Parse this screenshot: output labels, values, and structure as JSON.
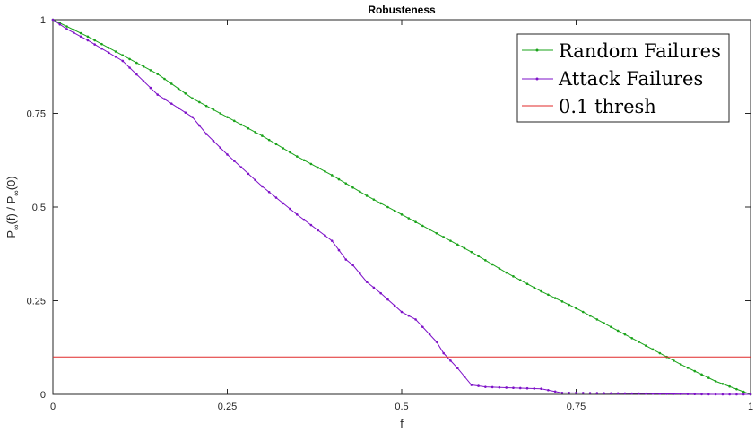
{
  "chart_data": {
    "type": "line",
    "title": "Robusteness",
    "xlabel": "f",
    "ylabel": {
      "main_a": "P",
      "sub_a": "∞",
      "mid": "(f) / P",
      "sub_b": "∞",
      "tail": "(0)"
    },
    "xlim": [
      0,
      1
    ],
    "ylim": [
      0,
      1
    ],
    "xticks": [
      0,
      0.25,
      0.5,
      0.75,
      1
    ],
    "xtick_labels": [
      "0",
      "0.25",
      "0.5",
      "0.75",
      "1"
    ],
    "yticks": [
      0,
      0.25,
      0.5,
      0.75,
      1
    ],
    "ytick_labels": [
      "0",
      "0.25",
      "0.5",
      "0.75",
      "1"
    ],
    "grid": false,
    "legend_position": "top-right",
    "series": [
      {
        "name": "Random Failures",
        "color": "#1aa31a",
        "marker": "dot",
        "x": [
          0,
          0.05,
          0.1,
          0.15,
          0.2,
          0.25,
          0.3,
          0.35,
          0.4,
          0.45,
          0.5,
          0.55,
          0.6,
          0.65,
          0.7,
          0.75,
          0.8,
          0.85,
          0.9,
          0.95,
          1.0
        ],
        "y": [
          1.0,
          0.955,
          0.905,
          0.855,
          0.79,
          0.74,
          0.69,
          0.635,
          0.585,
          0.53,
          0.48,
          0.43,
          0.38,
          0.325,
          0.275,
          0.23,
          0.18,
          0.13,
          0.08,
          0.035,
          0.0
        ]
      },
      {
        "name": "Attack Failures",
        "color": "#7e12c8",
        "marker": "dot",
        "x": [
          0,
          0.02,
          0.05,
          0.1,
          0.15,
          0.2,
          0.22,
          0.25,
          0.3,
          0.35,
          0.4,
          0.42,
          0.43,
          0.45,
          0.47,
          0.5,
          0.52,
          0.55,
          0.56,
          0.58,
          0.6,
          0.62,
          0.65,
          0.7,
          0.73,
          0.75,
          0.8,
          0.85,
          0.9,
          0.95,
          1.0
        ],
        "y": [
          1.0,
          0.975,
          0.945,
          0.89,
          0.8,
          0.74,
          0.695,
          0.64,
          0.555,
          0.48,
          0.41,
          0.36,
          0.345,
          0.3,
          0.27,
          0.22,
          0.2,
          0.14,
          0.11,
          0.07,
          0.025,
          0.02,
          0.018,
          0.015,
          0.004,
          0.004,
          0.003,
          0.002,
          0.001,
          0.0,
          0.0
        ]
      },
      {
        "name": "0.1 thresh",
        "color": "#e02a2a",
        "marker": "none",
        "x": [
          0,
          1
        ],
        "y": [
          0.1,
          0.1
        ]
      }
    ]
  }
}
